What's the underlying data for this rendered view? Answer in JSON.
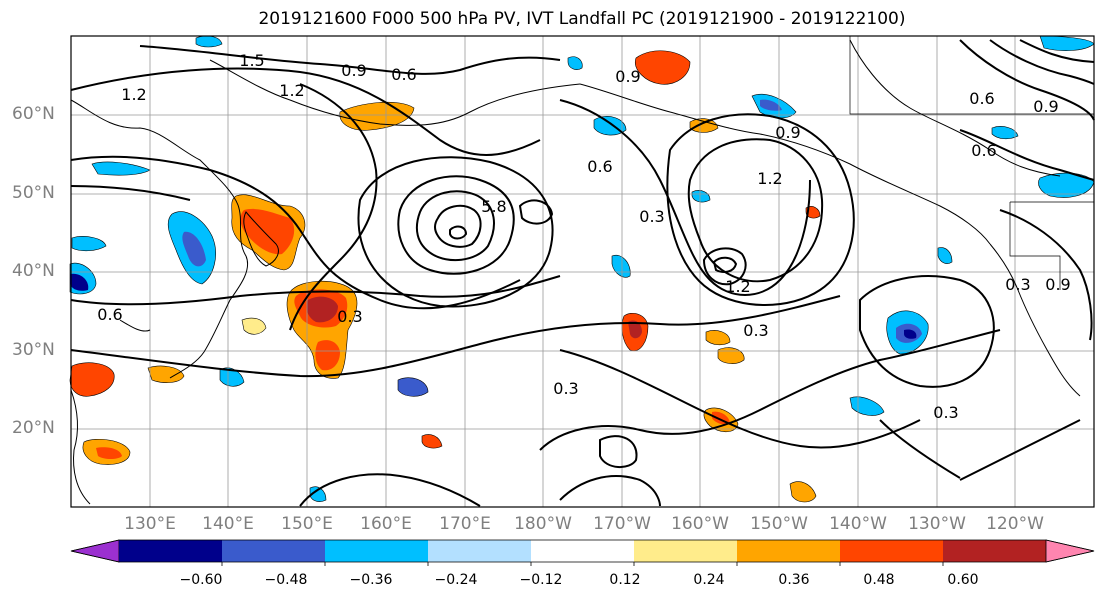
{
  "title": "2019121600 F000 500 hPa PV, IVT Landfall PC (2019121900 - 2019122100)",
  "lat_labels": [
    "60°N",
    "50°N",
    "40°N",
    "30°N",
    "20°N"
  ],
  "lon_labels": [
    "130°E",
    "140°E",
    "150°E",
    "160°E",
    "170°E",
    "180°W",
    "170°W",
    "160°W",
    "150°W",
    "140°W",
    "130°W",
    "120°W"
  ],
  "colorbar": {
    "ticks": [
      "−0.60",
      "−0.48",
      "−0.36",
      "−0.24",
      "−0.12",
      "0.12",
      "0.24",
      "0.36",
      "0.48",
      "0.60"
    ],
    "colors": [
      "#9b30d0",
      "#00008b",
      "#3a5bcc",
      "#00bfff",
      "#b3e0ff",
      "#ffffff",
      "#ffec8b",
      "#ffa500",
      "#ff4500",
      "#b22222",
      "#ff85b0"
    ]
  },
  "contour_labels": [
    "1.5",
    "1.2",
    "0.9",
    "0.6",
    "0.9",
    "1.2",
    "0.9",
    "0.6",
    "0.3",
    "0.3",
    "0.3",
    "0.3",
    "0.6",
    "0.9",
    "1.2",
    "0.6",
    "0.6",
    "0.3",
    "0.9",
    "1.2",
    "5.8",
    "0.3"
  ],
  "style": {
    "frame": "#000000",
    "grid": "#999999",
    "contour": "#000000",
    "tick_label": "#7f7f7f"
  }
}
